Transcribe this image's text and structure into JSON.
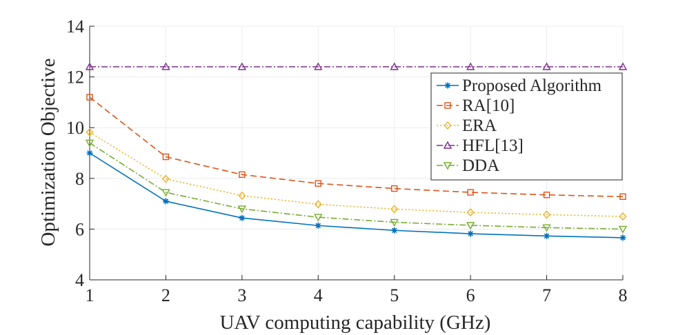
{
  "chart_data": {
    "type": "line",
    "title": "",
    "xlabel": "UAV computing capability (GHz)",
    "ylabel": "Optimization Objective",
    "xlim": [
      1,
      8
    ],
    "ylim": [
      4,
      14
    ],
    "xticks": [
      1,
      2,
      3,
      4,
      5,
      6,
      7,
      8
    ],
    "yticks": [
      4,
      6,
      8,
      10,
      12,
      14
    ],
    "grid": true,
    "legend_position": "top-right",
    "x": [
      1,
      2,
      3,
      4,
      5,
      6,
      7,
      8
    ],
    "series": [
      {
        "name": "Proposed Algorithm",
        "values": [
          9.0,
          7.1,
          6.44,
          6.14,
          5.95,
          5.82,
          5.73,
          5.66
        ],
        "color": "#0072BD",
        "marker": "asterisk",
        "line": "solid"
      },
      {
        "name": "RA[10]",
        "values": [
          11.2,
          8.85,
          8.15,
          7.8,
          7.6,
          7.45,
          7.35,
          7.28
        ],
        "color": "#D95319",
        "marker": "square",
        "line": "dashed"
      },
      {
        "name": "ERA",
        "values": [
          9.82,
          7.98,
          7.32,
          6.98,
          6.79,
          6.66,
          6.57,
          6.5
        ],
        "color": "#EDB120",
        "marker": "diamond",
        "line": "dotted"
      },
      {
        "name": "HFL[13]",
        "values": [
          12.4,
          12.4,
          12.4,
          12.4,
          12.4,
          12.4,
          12.4,
          12.4
        ],
        "color": "#7E2F8E",
        "marker": "triangle-up",
        "line": "dashdot"
      },
      {
        "name": "DDA",
        "values": [
          9.4,
          7.45,
          6.8,
          6.47,
          6.27,
          6.15,
          6.06,
          6.0
        ],
        "color": "#77AC30",
        "marker": "triangle-down",
        "line": "dashdot"
      }
    ]
  }
}
